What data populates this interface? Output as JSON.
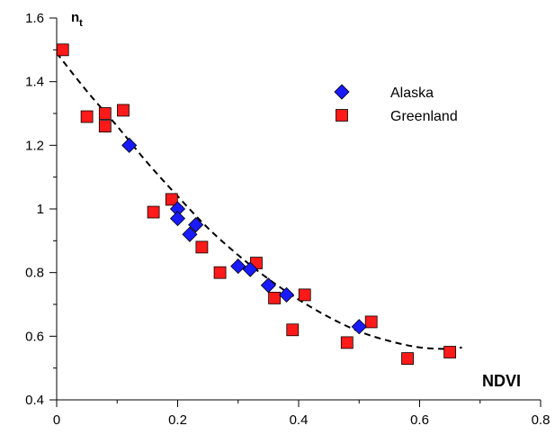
{
  "chart_data": {
    "type": "scatter",
    "xlabel": "NDVI",
    "ylabel_main": "n",
    "ylabel_sub": "t",
    "xlim": [
      0,
      0.8
    ],
    "ylim": [
      0.4,
      1.6
    ],
    "xticks": [
      0,
      0.2,
      0.4,
      0.6,
      0.8
    ],
    "xtick_labels": [
      "0",
      "0.2",
      "0.4",
      "0.6",
      "0.8"
    ],
    "yticks": [
      0.4,
      0.6,
      0.8,
      1.0,
      1.2,
      1.4,
      1.6
    ],
    "ytick_labels": [
      "0.4",
      "0.6",
      "0.8",
      "1",
      "1.2",
      "1.4",
      "1.6"
    ],
    "grid": false,
    "legend_position": "top-right",
    "series": [
      {
        "name": "Alaska",
        "marker": "diamond",
        "color": "#1a1aff",
        "points": [
          [
            0.12,
            1.2
          ],
          [
            0.2,
            1.0
          ],
          [
            0.2,
            0.97
          ],
          [
            0.23,
            0.95
          ],
          [
            0.22,
            0.92
          ],
          [
            0.3,
            0.82
          ],
          [
            0.32,
            0.81
          ],
          [
            0.35,
            0.76
          ],
          [
            0.38,
            0.73
          ],
          [
            0.5,
            0.63
          ]
        ]
      },
      {
        "name": "Greenland",
        "marker": "square",
        "color": "#ff1a1a",
        "points": [
          [
            0.01,
            1.5
          ],
          [
            0.05,
            1.29
          ],
          [
            0.08,
            1.3
          ],
          [
            0.08,
            1.26
          ],
          [
            0.11,
            1.31
          ],
          [
            0.16,
            0.99
          ],
          [
            0.19,
            1.03
          ],
          [
            0.24,
            0.88
          ],
          [
            0.27,
            0.8
          ],
          [
            0.33,
            0.83
          ],
          [
            0.36,
            0.72
          ],
          [
            0.39,
            0.62
          ],
          [
            0.41,
            0.73
          ],
          [
            0.48,
            0.58
          ],
          [
            0.52,
            0.645
          ],
          [
            0.58,
            0.53
          ],
          [
            0.65,
            0.55
          ]
        ]
      }
    ],
    "fit_curve": {
      "style": "dashed",
      "color": "#000000",
      "x": [
        0.0,
        0.05,
        0.1,
        0.15,
        0.2,
        0.25,
        0.3,
        0.35,
        0.4,
        0.45,
        0.5,
        0.55,
        0.6,
        0.65,
        0.67
      ],
      "y": [
        1.49,
        1.37,
        1.26,
        1.145,
        1.04,
        0.94,
        0.855,
        0.78,
        0.715,
        0.66,
        0.615,
        0.585,
        0.565,
        0.56,
        0.565
      ]
    }
  }
}
